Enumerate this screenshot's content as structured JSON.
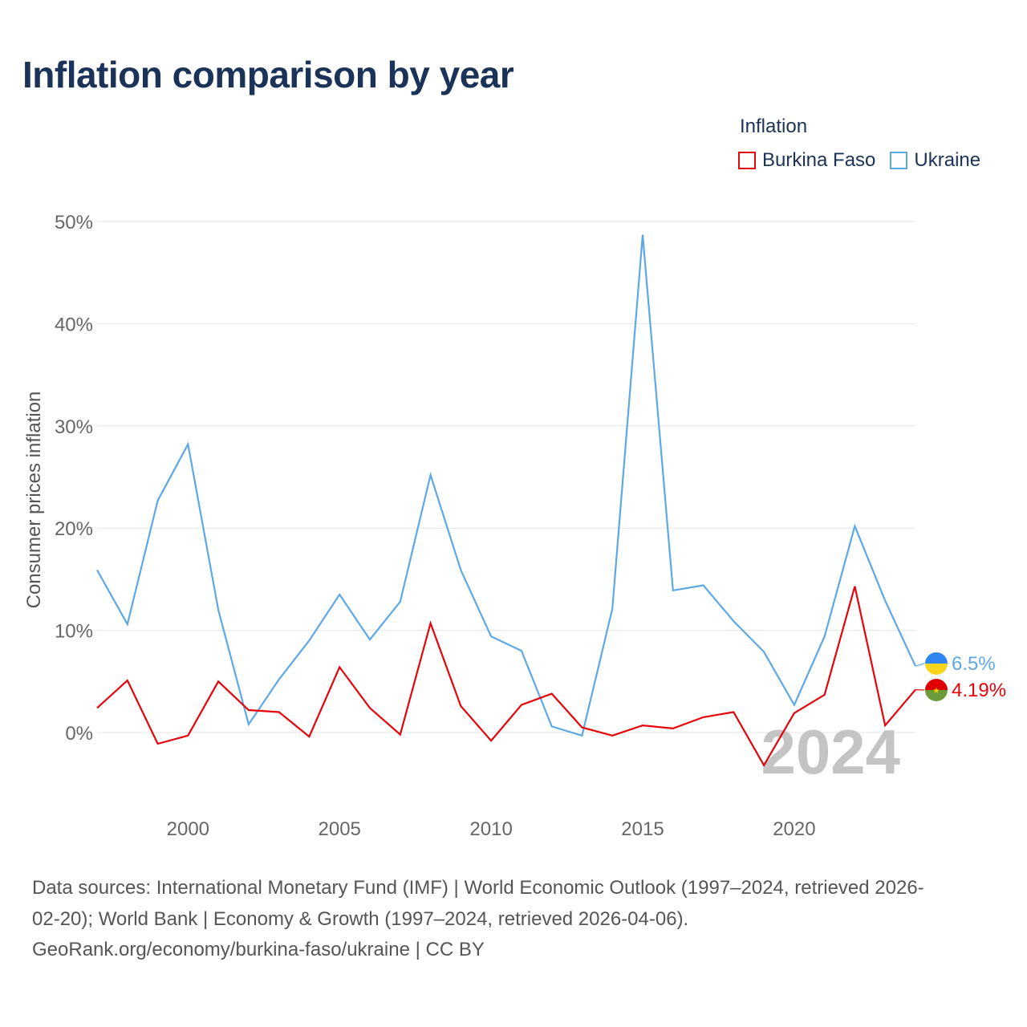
{
  "header": {
    "title": "Inflation comparison by year"
  },
  "legend": {
    "title": "Inflation",
    "items": [
      {
        "label": "Burkina Faso",
        "color": "#e4050b"
      },
      {
        "label": "Ukraine",
        "color": "#5ea8e6"
      }
    ]
  },
  "chart_data": {
    "type": "line",
    "title": "Inflation comparison by year",
    "xlabel": "",
    "ylabel": "Consumer prices inflation",
    "xlim": [
      1997,
      2024
    ],
    "ylim": [
      -8,
      50
    ],
    "grid": true,
    "legend_position": "top-right",
    "x_ticks": [
      2000,
      2005,
      2010,
      2015,
      2020
    ],
    "x_tick_labels": [
      "2000",
      "2005",
      "2010",
      "2015",
      "2020"
    ],
    "y_ticks": [
      0,
      10,
      20,
      30,
      40,
      50
    ],
    "y_tick_labels": [
      "0%",
      "10%",
      "20%",
      "30%",
      "40%",
      "50%"
    ],
    "year_watermark": "2024",
    "x": [
      1997,
      1998,
      1999,
      2000,
      2001,
      2002,
      2003,
      2004,
      2005,
      2006,
      2007,
      2008,
      2009,
      2010,
      2011,
      2012,
      2013,
      2014,
      2015,
      2016,
      2017,
      2018,
      2019,
      2020,
      2021,
      2022,
      2023,
      2024
    ],
    "series": [
      {
        "name": "Burkina Faso",
        "color": "#e4050b",
        "end_label": "4.19%",
        "values": [
          2.4,
          5.1,
          -1.1,
          -0.3,
          5.0,
          2.2,
          2.0,
          -0.4,
          6.4,
          2.4,
          -0.2,
          10.7,
          2.6,
          -0.8,
          2.7,
          3.8,
          0.5,
          -0.3,
          0.7,
          0.4,
          1.5,
          2.0,
          -3.2,
          1.9,
          3.7,
          14.3,
          0.7,
          4.19
        ]
      },
      {
        "name": "Ukraine",
        "color": "#5ea8e6",
        "end_label": "6.5%",
        "values": [
          15.9,
          10.6,
          22.7,
          28.2,
          12.0,
          0.8,
          5.2,
          9.0,
          13.5,
          9.1,
          12.8,
          25.2,
          15.9,
          9.4,
          8.0,
          0.6,
          -0.3,
          12.1,
          48.7,
          13.9,
          14.4,
          10.9,
          7.9,
          2.7,
          9.4,
          20.2,
          12.9,
          6.5
        ]
      }
    ]
  },
  "footer": {
    "sources_line1": "Data sources: International Monetary Fund (IMF) | World Economic Outlook (1997–2024, retrieved 2026-",
    "sources_line2": "02-20); World Bank | Economy & Growth (1997–2024, retrieved 2026-04-06).",
    "attribution": "GeoRank.org/economy/burkina-faso/ukraine | CC BY"
  }
}
